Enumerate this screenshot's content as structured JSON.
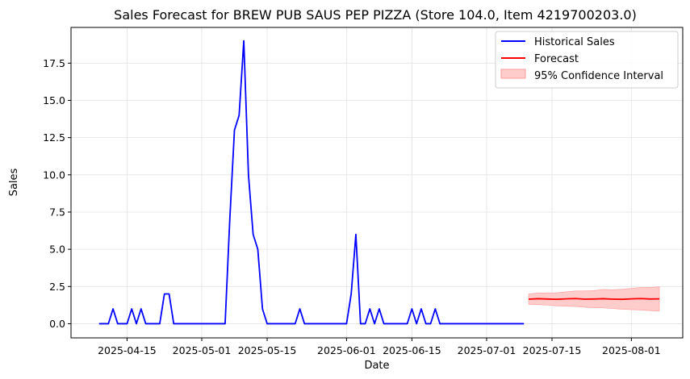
{
  "chart_data": {
    "type": "line",
    "title": "Sales Forecast for BREW PUB SAUS PEP PIZZA (Store 104.0, Item 4219700203.0)",
    "xlabel": "Date",
    "ylabel": "Sales",
    "ylim": [
      -0.95,
      19.9
    ],
    "xlim": [
      "2025-04-03",
      "2025-08-12"
    ],
    "x_ticks": [
      "2025-04-15",
      "2025-05-01",
      "2025-05-15",
      "2025-06-01",
      "2025-06-15",
      "2025-07-01",
      "2025-07-15",
      "2025-08-01"
    ],
    "y_ticks": [
      "0.0",
      "2.5",
      "5.0",
      "7.5",
      "10.0",
      "12.5",
      "15.0",
      "17.5"
    ],
    "grid": true,
    "legend_position": "top-right",
    "colors": {
      "historical": "#0000ff",
      "forecast": "#ff0000",
      "interval": "#ffcccc",
      "interval_edge": "#ff9a9a",
      "grid": "#e3e3e3"
    },
    "series": [
      {
        "name": "Historical Sales",
        "kind": "line",
        "x": [
          "2025-04-09",
          "2025-04-10",
          "2025-04-11",
          "2025-04-12",
          "2025-04-13",
          "2025-04-14",
          "2025-04-15",
          "2025-04-16",
          "2025-04-17",
          "2025-04-18",
          "2025-04-19",
          "2025-04-20",
          "2025-04-21",
          "2025-04-22",
          "2025-04-23",
          "2025-04-24",
          "2025-04-25",
          "2025-04-26",
          "2025-04-27",
          "2025-04-28",
          "2025-04-29",
          "2025-04-30",
          "2025-05-01",
          "2025-05-02",
          "2025-05-03",
          "2025-05-04",
          "2025-05-05",
          "2025-05-06",
          "2025-05-07",
          "2025-05-08",
          "2025-05-09",
          "2025-05-10",
          "2025-05-11",
          "2025-05-12",
          "2025-05-13",
          "2025-05-14",
          "2025-05-15",
          "2025-05-16",
          "2025-05-17",
          "2025-05-18",
          "2025-05-19",
          "2025-05-20",
          "2025-05-21",
          "2025-05-22",
          "2025-05-23",
          "2025-05-24",
          "2025-05-25",
          "2025-05-26",
          "2025-05-27",
          "2025-05-28",
          "2025-05-29",
          "2025-05-30",
          "2025-05-31",
          "2025-06-01",
          "2025-06-02",
          "2025-06-03",
          "2025-06-04",
          "2025-06-05",
          "2025-06-06",
          "2025-06-07",
          "2025-06-08",
          "2025-06-09",
          "2025-06-10",
          "2025-06-11",
          "2025-06-12",
          "2025-06-13",
          "2025-06-14",
          "2025-06-15",
          "2025-06-16",
          "2025-06-17",
          "2025-06-18",
          "2025-06-19",
          "2025-06-20",
          "2025-06-21",
          "2025-06-22",
          "2025-06-23",
          "2025-06-24",
          "2025-06-25",
          "2025-06-26",
          "2025-06-27",
          "2025-06-28",
          "2025-06-29",
          "2025-06-30",
          "2025-07-01",
          "2025-07-02",
          "2025-07-03",
          "2025-07-04",
          "2025-07-05",
          "2025-07-06",
          "2025-07-07",
          "2025-07-08",
          "2025-07-09"
        ],
        "values": [
          0,
          0,
          0,
          1,
          0,
          0,
          0,
          1,
          0,
          1,
          0,
          0,
          0,
          0,
          2,
          2,
          0,
          0,
          0,
          0,
          0,
          0,
          0,
          0,
          0,
          0,
          0,
          0,
          7,
          13,
          14,
          19,
          10,
          6,
          5,
          1,
          0,
          0,
          0,
          0,
          0,
          0,
          0,
          1,
          0,
          0,
          0,
          0,
          0,
          0,
          0,
          0,
          0,
          0,
          2,
          6,
          0,
          0,
          1,
          0,
          1,
          0,
          0,
          0,
          0,
          0,
          0,
          1,
          0,
          1,
          0,
          0,
          1,
          0,
          0,
          0,
          0,
          0,
          0,
          0,
          0,
          0,
          0,
          0,
          0,
          0,
          0,
          0,
          0,
          0,
          0,
          0
        ]
      },
      {
        "name": "Forecast",
        "kind": "line",
        "x": [
          "2025-07-10",
          "2025-07-12",
          "2025-07-14",
          "2025-07-16",
          "2025-07-18",
          "2025-07-20",
          "2025-07-22",
          "2025-07-24",
          "2025-07-26",
          "2025-07-28",
          "2025-07-30",
          "2025-08-01",
          "2025-08-03",
          "2025-08-05",
          "2025-08-07"
        ],
        "values": [
          1.65,
          1.68,
          1.66,
          1.64,
          1.67,
          1.69,
          1.65,
          1.66,
          1.68,
          1.65,
          1.64,
          1.67,
          1.69,
          1.66,
          1.67
        ]
      },
      {
        "name": "95% Confidence Interval",
        "kind": "band",
        "x": [
          "2025-07-10",
          "2025-07-12",
          "2025-07-14",
          "2025-07-16",
          "2025-07-18",
          "2025-07-20",
          "2025-07-22",
          "2025-07-24",
          "2025-07-26",
          "2025-07-28",
          "2025-07-30",
          "2025-08-01",
          "2025-08-03",
          "2025-08-05",
          "2025-08-07"
        ],
        "lower": [
          1.3,
          1.28,
          1.25,
          1.2,
          1.18,
          1.16,
          1.11,
          1.08,
          1.06,
          1.02,
          0.97,
          0.95,
          0.92,
          0.88,
          0.85
        ],
        "upper": [
          2.0,
          2.06,
          2.07,
          2.08,
          2.14,
          2.2,
          2.2,
          2.23,
          2.3,
          2.28,
          2.31,
          2.38,
          2.44,
          2.44,
          2.48
        ]
      }
    ]
  }
}
